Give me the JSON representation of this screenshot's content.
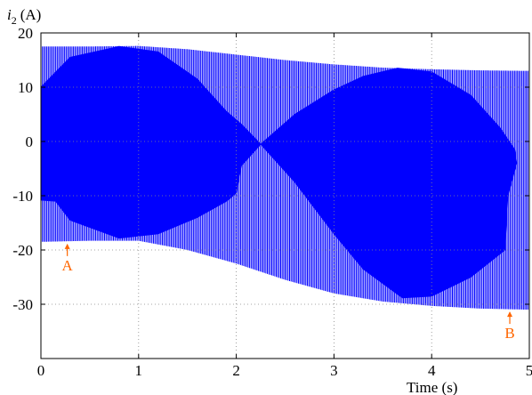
{
  "chart_data": {
    "type": "line",
    "title": "",
    "ylabel_var": "i",
    "ylabel_sub": "2",
    "ylabel_unit": "(A)",
    "xlabel": "Time (s)",
    "xlim": [
      0,
      5
    ],
    "ylim": [
      -40,
      20
    ],
    "xticks": [
      "0",
      "1",
      "2",
      "3",
      "4",
      "5"
    ],
    "yticks": [
      "20",
      "10",
      "0",
      "-10",
      "-20",
      "-30"
    ],
    "grid": true,
    "grid_style": "dotted",
    "series": [
      {
        "color": "#0000ff",
        "description_note": "",
        "upper_envelope": [
          [
            0,
            17.5
          ],
          [
            0.5,
            17.5
          ],
          [
            1,
            17.6
          ],
          [
            1.5,
            17.0
          ],
          [
            2,
            16.0
          ],
          [
            2.5,
            15.0
          ],
          [
            3,
            14.2
          ],
          [
            3.5,
            13.6
          ],
          [
            4,
            13.3
          ],
          [
            4.5,
            13.1
          ],
          [
            5,
            13.0
          ]
        ],
        "lower_envelope": [
          [
            0,
            -18.5
          ],
          [
            0.5,
            -18.3
          ],
          [
            1,
            -18.3
          ],
          [
            1.5,
            -20.0
          ],
          [
            2,
            -22.5
          ],
          [
            2.5,
            -25.5
          ],
          [
            3,
            -28.0
          ],
          [
            3.5,
            -29.5
          ],
          [
            4,
            -30.3
          ],
          [
            4.5,
            -30.8
          ],
          [
            5,
            -31.0
          ]
        ],
        "dense_band_upper": [
          [
            0,
            10
          ],
          [
            0.3,
            15.5
          ],
          [
            0.8,
            17.5
          ],
          [
            1.2,
            16.5
          ],
          [
            1.6,
            11.5
          ],
          [
            1.9,
            5.5
          ],
          [
            2.05,
            3.2
          ],
          [
            2.25,
            -0.5
          ],
          [
            2.6,
            5.0
          ],
          [
            3.0,
            9.5
          ],
          [
            3.3,
            12.0
          ],
          [
            3.65,
            13.5
          ],
          [
            4.0,
            12.8
          ],
          [
            4.4,
            8.5
          ],
          [
            4.7,
            2.5
          ],
          [
            4.85,
            -1.5
          ],
          [
            4.87,
            -4.0
          ]
        ],
        "dense_band_lower": [
          [
            0,
            -10.8
          ],
          [
            0.15,
            -11.0
          ],
          [
            0.3,
            -14.5
          ],
          [
            0.8,
            -17.8
          ],
          [
            1.2,
            -17.0
          ],
          [
            1.6,
            -14.0
          ],
          [
            1.9,
            -11.0
          ],
          [
            2.0,
            -9.5
          ],
          [
            2.05,
            -4.5
          ],
          [
            2.25,
            -0.5
          ],
          [
            2.6,
            -7.5
          ],
          [
            3.0,
            -17.0
          ],
          [
            3.3,
            -23.5
          ],
          [
            3.7,
            -28.8
          ],
          [
            4.0,
            -28.5
          ],
          [
            4.4,
            -25.0
          ],
          [
            4.75,
            -20.0
          ],
          [
            4.78,
            -10.0
          ],
          [
            4.87,
            -4.0
          ]
        ]
      }
    ],
    "annotations": [
      {
        "label": "A",
        "x": 0.27,
        "y": -18.5,
        "color": "#ff6600"
      },
      {
        "label": "B",
        "x": 4.8,
        "y": -31.0,
        "color": "#ff6600"
      }
    ]
  }
}
